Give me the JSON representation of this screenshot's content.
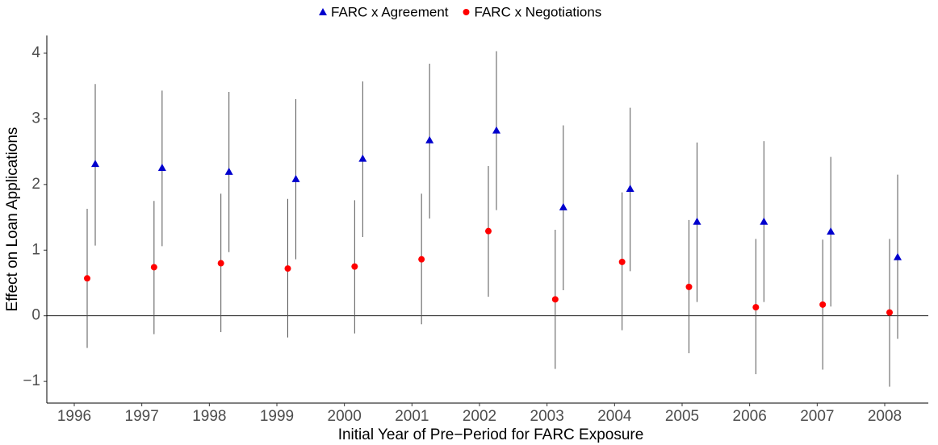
{
  "chart_data": {
    "type": "errorbar",
    "xlabel": "Initial Year of Pre−Period for FARC Exposure",
    "ylabel": "Effect on Loan Applications",
    "categories": [
      "1996",
      "1997",
      "1998",
      "1999",
      "2000",
      "2001",
      "2002",
      "2003",
      "2004",
      "2005",
      "2006",
      "2007",
      "2008"
    ],
    "series": [
      {
        "name": "FARC x Agreement",
        "color": "#0000cd",
        "marker": "triangle",
        "values": [
          2.31,
          2.25,
          2.19,
          2.08,
          2.39,
          2.67,
          2.82,
          1.65,
          1.93,
          1.43,
          1.43,
          1.28,
          0.89
        ],
        "lower": [
          1.07,
          1.06,
          0.97,
          0.86,
          1.2,
          1.48,
          1.61,
          0.39,
          0.68,
          0.21,
          0.21,
          0.14,
          -0.35
        ],
        "upper": [
          3.53,
          3.43,
          3.41,
          3.3,
          3.57,
          3.84,
          4.03,
          2.9,
          3.17,
          2.64,
          2.66,
          2.42,
          2.15
        ]
      },
      {
        "name": "FARC x Negotiations",
        "color": "#ff0000",
        "marker": "circle",
        "values": [
          0.57,
          0.74,
          0.8,
          0.72,
          0.75,
          0.86,
          1.29,
          0.25,
          0.82,
          0.44,
          0.13,
          0.17,
          0.05
        ],
        "lower": [
          -0.49,
          -0.28,
          -0.25,
          -0.33,
          -0.27,
          -0.13,
          0.29,
          -0.81,
          -0.22,
          -0.57,
          -0.89,
          -0.82,
          -1.08
        ],
        "upper": [
          1.63,
          1.75,
          1.86,
          1.78,
          1.76,
          1.86,
          2.28,
          1.31,
          1.88,
          1.46,
          1.17,
          1.16,
          1.17
        ]
      }
    ],
    "ylim": [
      -1.33,
      4.27
    ],
    "yticks": [
      {
        "value": -1,
        "label": "−1"
      },
      0,
      1,
      2,
      3,
      4
    ],
    "reference_line": 0,
    "legend": "top",
    "errorbar_color": "#555555"
  }
}
